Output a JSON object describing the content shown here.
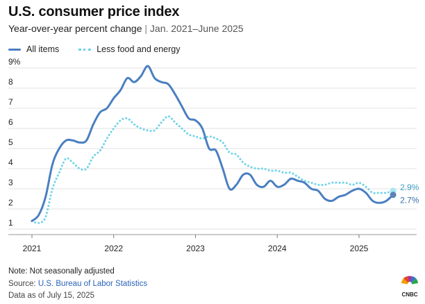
{
  "header": {
    "title": "U.S. consumer price index",
    "subtitle_main": "Year-over-year percent change",
    "subtitle_sep": "|",
    "subtitle_range": "Jan. 2021–June 2025"
  },
  "legend": {
    "all_items": "All items",
    "core": "Less food and energy"
  },
  "footer": {
    "note": "Note: Not seasonally adjusted",
    "source_prefix": "Source: ",
    "source_link": "U.S. Bureau of Labor Statistics",
    "as_of": "Data as of July 15, 2025"
  },
  "brand": {
    "logo_text": "CNBC"
  },
  "colors": {
    "all_items": "#4a7fc1",
    "core": "#6fd3e8",
    "grid": "#e2e2e2"
  },
  "chart_data": {
    "type": "line",
    "title": "U.S. consumer price index",
    "subtitle": "Year-over-year percent change | Jan. 2021–June 2025",
    "ylim": [
      1,
      9
    ],
    "y_ticks": [
      1,
      2,
      3,
      4,
      5,
      6,
      7,
      8,
      9
    ],
    "y_tick_labels": [
      "1",
      "2",
      "3",
      "4",
      "5",
      "6",
      "7",
      "8",
      "9%"
    ],
    "x_ticks": [
      2021,
      2022,
      2023,
      2024,
      2025
    ],
    "x_tick_labels": [
      "2021",
      "2022",
      "2023",
      "2024",
      "2025"
    ],
    "x_start": "2021-01",
    "x_end": "2025-06",
    "legend_position": "top-left",
    "grid": "horizontal",
    "end_labels": [
      "2.9%",
      "2.7%"
    ],
    "series": [
      {
        "name": "All items",
        "style": "solid",
        "values": [
          1.4,
          1.7,
          2.6,
          4.2,
          5.0,
          5.4,
          5.4,
          5.3,
          5.4,
          6.2,
          6.8,
          7.0,
          7.5,
          7.9,
          8.5,
          8.3,
          8.6,
          9.1,
          8.5,
          8.3,
          8.2,
          7.7,
          7.1,
          6.5,
          6.4,
          6.0,
          5.0,
          4.9,
          4.0,
          3.0,
          3.2,
          3.7,
          3.7,
          3.2,
          3.1,
          3.4,
          3.1,
          3.2,
          3.5,
          3.4,
          3.3,
          3.0,
          2.9,
          2.5,
          2.4,
          2.6,
          2.7,
          2.9,
          3.0,
          2.8,
          2.4,
          2.3,
          2.4,
          2.7
        ]
      },
      {
        "name": "Less food and energy",
        "style": "dotted",
        "values": [
          1.4,
          1.3,
          1.6,
          3.0,
          3.8,
          4.5,
          4.3,
          4.0,
          4.0,
          4.6,
          4.9,
          5.5,
          6.0,
          6.4,
          6.5,
          6.2,
          6.0,
          5.9,
          5.9,
          6.3,
          6.6,
          6.3,
          6.0,
          5.7,
          5.6,
          5.5,
          5.6,
          5.5,
          5.3,
          4.8,
          4.7,
          4.3,
          4.1,
          4.0,
          4.0,
          3.9,
          3.9,
          3.8,
          3.8,
          3.6,
          3.4,
          3.3,
          3.2,
          3.2,
          3.3,
          3.3,
          3.3,
          3.2,
          3.3,
          3.1,
          2.8,
          2.8,
          2.8,
          2.9
        ]
      }
    ]
  }
}
